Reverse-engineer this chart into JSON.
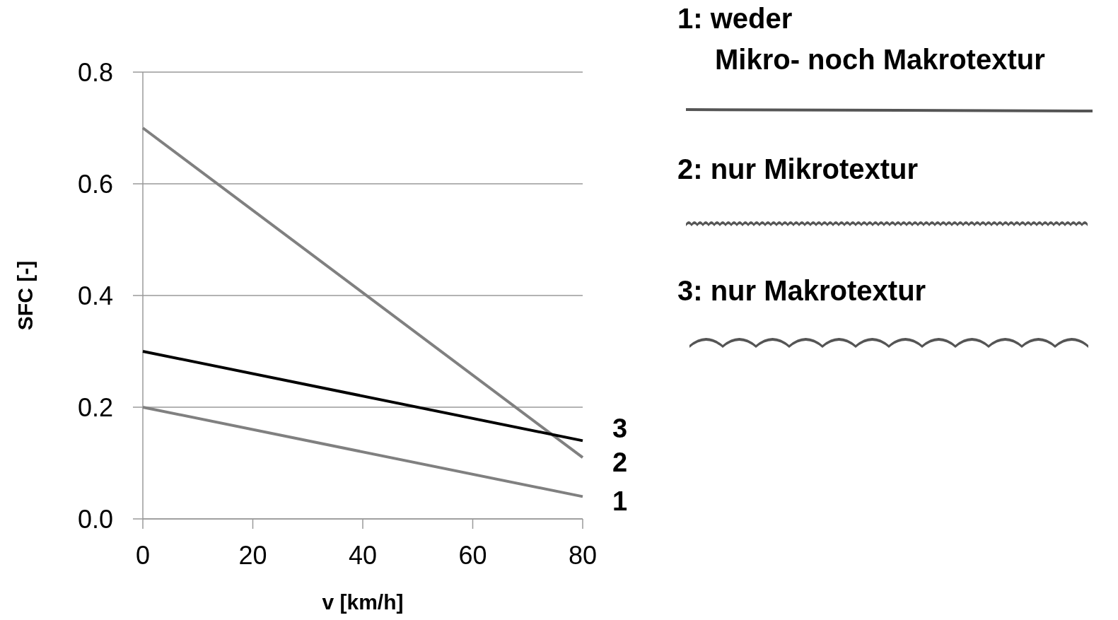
{
  "chart_data": {
    "type": "line",
    "xlabel": "v [km/h]",
    "ylabel": "SFC [-]",
    "x": [
      0,
      80
    ],
    "xlim": [
      0,
      80
    ],
    "xticks": [
      0,
      20,
      40,
      60,
      80
    ],
    "ylim": [
      0,
      0.8
    ],
    "yticks": [
      {
        "value": 0,
        "label": "0.0"
      },
      {
        "value": 0.2,
        "label": "0.2"
      },
      {
        "value": 0.4,
        "label": "0.4"
      },
      {
        "value": 0.6,
        "label": "0.6"
      },
      {
        "value": 0.8,
        "label": "0.8"
      }
    ],
    "grid": "y",
    "marker": "none",
    "line_style": "solid",
    "series": [
      {
        "name": "1",
        "color": "#808080",
        "values": [
          0.2,
          0.04
        ]
      },
      {
        "name": "2",
        "color": "#808080",
        "values": [
          0.7,
          0.11
        ]
      },
      {
        "name": "3",
        "color": "#000000",
        "values": [
          0.3,
          0.14
        ]
      }
    ],
    "annotations": [
      "1: weder\nMikro- noch Makrotextur",
      "2: nur Mikrotextur",
      "3: nur Makrotextur"
    ]
  }
}
